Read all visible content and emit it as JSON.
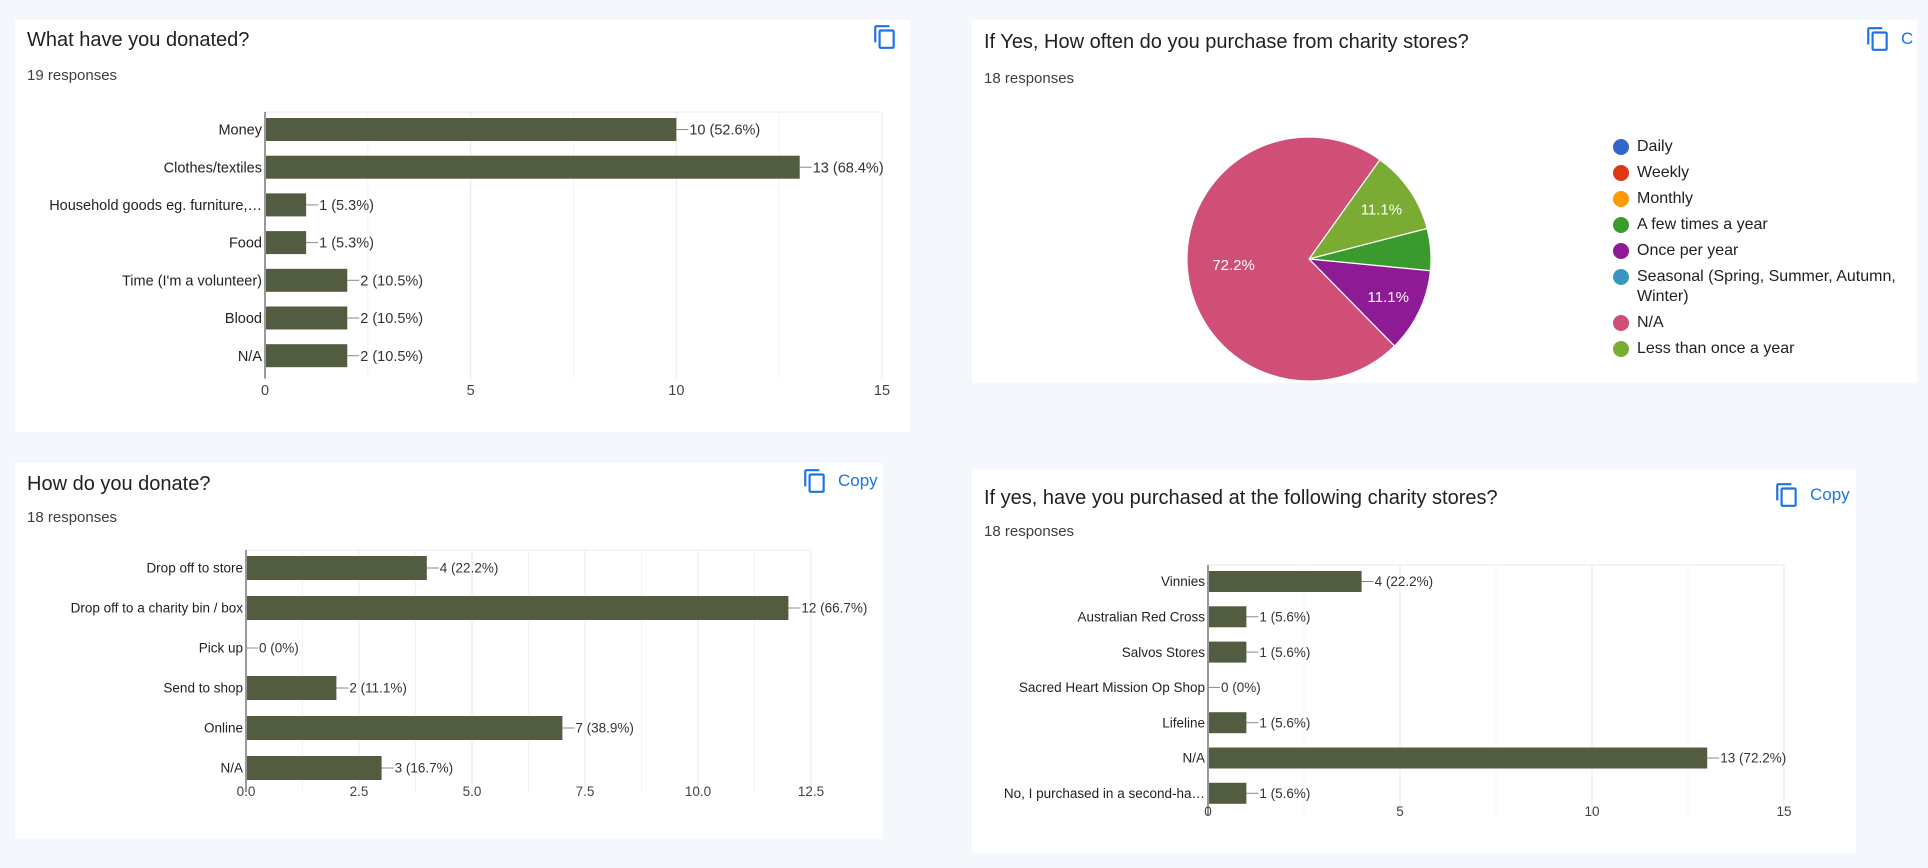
{
  "copy_label": "Copy",
  "cards": {
    "donated": {
      "title": "What have you donated?",
      "responses": "19 responses",
      "copy_label": ""
    },
    "frequency": {
      "title": "If Yes, How often do you purchase from charity stores?",
      "responses": "18 responses",
      "copy_label": "C"
    },
    "how": {
      "title": "How do you donate?",
      "responses": "18 responses",
      "copy_label": "Copy"
    },
    "stores": {
      "title": "If yes, have you purchased at the following charity stores?",
      "responses": "18 responses",
      "copy_label": "Copy"
    }
  },
  "colors": {
    "bar": "#525c40",
    "grid": "#e8e8e8",
    "axis": "#333333",
    "accent": "#1a73e8"
  },
  "chart_data": [
    {
      "id": "donated",
      "type": "bar",
      "orientation": "horizontal",
      "title": "What have you donated?",
      "categories": [
        "Money",
        "Clothes/textiles",
        "Household goods eg. furniture,…",
        "Food",
        "Time (I'm a volunteer)",
        "Blood",
        "N/A"
      ],
      "values": [
        10,
        13,
        1,
        1,
        2,
        2,
        2
      ],
      "labels": [
        "10 (52.6%)",
        "13 (68.4%)",
        "1 (5.3%)",
        "1 (5.3%)",
        "2 (10.5%)",
        "2 (10.5%)",
        "2 (10.5%)"
      ],
      "xlim": [
        0,
        15
      ],
      "ticks": [
        0,
        5,
        10,
        15
      ],
      "tick_labels": [
        "0",
        "5",
        "10",
        "15"
      ],
      "grid": true
    },
    {
      "id": "how",
      "type": "bar",
      "orientation": "horizontal",
      "title": "How do you donate?",
      "categories": [
        "Drop off to store",
        "Drop off to a charity bin / box",
        "Pick up",
        "Send to shop",
        "Online",
        "N/A"
      ],
      "values": [
        4,
        12,
        0,
        2,
        7,
        3
      ],
      "labels": [
        "4 (22.2%)",
        "12 (66.7%)",
        "0 (0%)",
        "2 (11.1%)",
        "7 (38.9%)",
        "3 (16.7%)"
      ],
      "xlim": [
        0,
        12.5
      ],
      "ticks": [
        0,
        2.5,
        5,
        7.5,
        10,
        12.5
      ],
      "tick_labels": [
        "0.0",
        "2.5",
        "5.0",
        "7.5",
        "10.0",
        "12.5"
      ],
      "grid": true
    },
    {
      "id": "stores",
      "type": "bar",
      "orientation": "horizontal",
      "title": "If yes, have you purchased at the following charity stores?",
      "categories": [
        "Vinnies",
        "Australian Red Cross",
        "Salvos Stores",
        "Sacred Heart Mission Op Shop",
        "Lifeline",
        "N/A",
        "No, I purchased in a second-ha…"
      ],
      "values": [
        4,
        1,
        1,
        0,
        1,
        13,
        1
      ],
      "labels": [
        "4 (22.2%)",
        "1 (5.6%)",
        "1 (5.6%)",
        "0 (0%)",
        "1 (5.6%)",
        "13 (72.2%)",
        "1 (5.6%)"
      ],
      "xlim": [
        0,
        15
      ],
      "ticks": [
        0,
        5,
        10,
        15
      ],
      "tick_labels": [
        "0",
        "5",
        "10",
        "15"
      ],
      "grid": true
    },
    {
      "id": "frequency",
      "type": "pie",
      "title": "If Yes, How often do you purchase from charity stores?",
      "slices": [
        {
          "label": "Daily",
          "value": 0,
          "color": "#3366cc",
          "pct_label": ""
        },
        {
          "label": "Weekly",
          "value": 0,
          "color": "#dc3912",
          "pct_label": ""
        },
        {
          "label": "Monthly",
          "value": 0,
          "color": "#ff9900",
          "pct_label": ""
        },
        {
          "label": "A few times a year",
          "value": 1,
          "color": "#3a9a2e",
          "pct_label": ""
        },
        {
          "label": "Once per year",
          "value": 2,
          "color": "#8e1a96",
          "pct_label": "11.1%"
        },
        {
          "label": "Seasonal (Spring, Summer, Autumn, Winter)",
          "value": 0,
          "color": "#3a95c4",
          "pct_label": ""
        },
        {
          "label": "N/A",
          "value": 13,
          "color": "#cf4f76",
          "pct_label": "72.2%"
        },
        {
          "label": "Less than once a year",
          "value": 2,
          "color": "#7aab33",
          "pct_label": "11.1%"
        }
      ],
      "legend_position": "right"
    }
  ]
}
